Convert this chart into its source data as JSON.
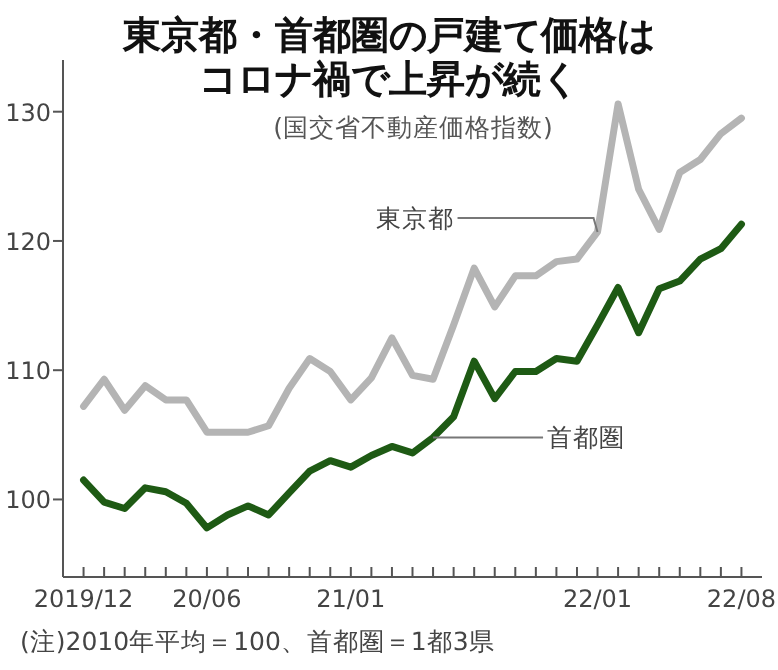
{
  "chart_data": {
    "type": "line",
    "title": "東京都・首都圏の戸建て価格はコロナ禍で上昇が続く",
    "subtitle": "(国交省不動産価格指数)",
    "annotations": [
      {
        "text": "東京都",
        "x": "2022-01",
        "y": 120.7
      },
      {
        "text": "首都圏",
        "x": "2021-05",
        "y": 104.8
      },
      "(注)2010年平均＝100、首都圏＝1都3県"
    ],
    "x": [
      "2019-12",
      "2020-01",
      "2020-02",
      "2020-03",
      "2020-04",
      "2020-05",
      "2020-06",
      "2020-07",
      "2020-08",
      "2020-09",
      "2020-10",
      "2020-11",
      "2020-12",
      "2021-01",
      "2021-02",
      "2021-03",
      "2021-04",
      "2021-05",
      "2021-06",
      "2021-07",
      "2021-08",
      "2021-09",
      "2021-10",
      "2021-11",
      "2021-12",
      "2022-01",
      "2022-02",
      "2022-03",
      "2022-04",
      "2022-05",
      "2022-06",
      "2022-07",
      "2022-08"
    ],
    "series": [
      {
        "color": "#b4b4b4",
        "values": [
          107.2,
          109.3,
          106.9,
          108.8,
          107.7,
          107.7,
          105.2,
          105.2,
          105.2,
          105.7,
          108.6,
          110.9,
          109.9,
          107.7,
          109.4,
          112.5,
          109.6,
          109.3,
          113.5,
          117.9,
          114.9,
          117.3,
          117.3,
          118.4,
          118.6,
          120.7,
          130.6,
          124.0,
          120.9,
          125.3,
          126.3,
          128.3,
          129.5
        ]
      },
      {
        "color": "#1e5a14",
        "values": [
          101.5,
          99.8,
          99.3,
          100.9,
          100.6,
          99.7,
          97.8,
          98.8,
          99.5,
          98.8,
          100.5,
          102.2,
          103.0,
          102.5,
          103.4,
          104.1,
          103.6,
          104.8,
          106.4,
          110.7,
          107.8,
          109.9,
          109.9,
          110.9,
          110.7,
          113.5,
          116.4,
          112.9,
          116.3,
          116.9,
          118.6,
          119.4,
          121.3
        ]
      }
    ],
    "xlim": [
      "2019-11",
      "2022-09"
    ],
    "ylim": [
      94,
      134
    ],
    "xticks": [
      {
        "value": "2019-12",
        "label": "2019/12"
      },
      {
        "value": "2020-01",
        "label": null
      },
      {
        "value": "2020-02",
        "label": null
      },
      {
        "value": "2020-03",
        "label": null
      },
      {
        "value": "2020-04",
        "label": null
      },
      {
        "value": "2020-05",
        "label": null
      },
      {
        "value": "2020-06",
        "label": "20/06"
      },
      {
        "value": "2020-07",
        "label": null
      },
      {
        "value": "2020-08",
        "label": null
      },
      {
        "value": "2020-09",
        "label": null
      },
      {
        "value": "2020-10",
        "label": null
      },
      {
        "value": "2020-11",
        "label": null
      },
      {
        "value": "2020-12",
        "label": null
      },
      {
        "value": "2021-01",
        "label": "21/01"
      },
      {
        "value": "2021-02",
        "label": null
      },
      {
        "value": "2021-03",
        "label": null
      },
      {
        "value": "2021-04",
        "label": null
      },
      {
        "value": "2021-05",
        "label": null
      },
      {
        "value": "2021-06",
        "label": null
      },
      {
        "value": "2021-07",
        "label": null
      },
      {
        "value": "2021-08",
        "label": null
      },
      {
        "value": "2021-09",
        "label": null
      },
      {
        "value": "2021-10",
        "label": null
      },
      {
        "value": "2021-11",
        "label": null
      },
      {
        "value": "2021-12",
        "label": null
      },
      {
        "value": "2022-01",
        "label": "22/01"
      },
      {
        "value": "2022-02",
        "label": null
      },
      {
        "value": "2022-03",
        "label": null
      },
      {
        "value": "2022-04",
        "label": null
      },
      {
        "value": "2022-05",
        "label": null
      },
      {
        "value": "2022-06",
        "label": null
      },
      {
        "value": "2022-07",
        "label": null
      },
      {
        "value": "2022-08",
        "label": "22/08"
      }
    ],
    "yticks": [
      100,
      110,
      120,
      130
    ]
  }
}
